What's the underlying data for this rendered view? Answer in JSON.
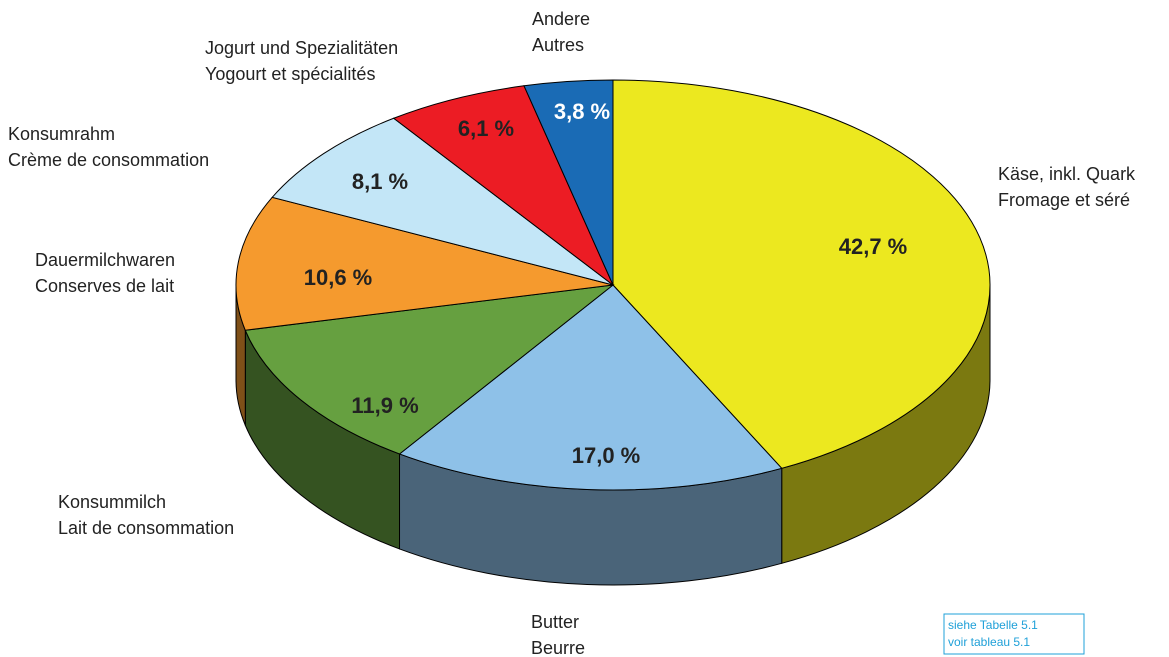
{
  "chart_data": {
    "type": "pie",
    "categories": [
      [
        "Käse, inkl. Quark",
        "Fromage et séré"
      ],
      [
        "Butter",
        "Beurre"
      ],
      [
        "Konsummilch",
        "Lait de consommation"
      ],
      [
        "Dauermilchwaren",
        "Conserves de lait"
      ],
      [
        "Konsumrahm",
        "Crème de consommation"
      ],
      [
        "Jogurt und Spezialitäten",
        "Yogourt et spécialités"
      ],
      [
        "Andere",
        "Autres"
      ]
    ],
    "values": [
      42.7,
      17.0,
      11.9,
      10.6,
      8.1,
      6.1,
      3.8
    ],
    "value_labels": [
      "42,7 %",
      "17,0 %",
      "11,9 %",
      "10,6 %",
      "8,1 %",
      "6,1 %",
      "3,8 %"
    ],
    "colors": [
      "#ece81f",
      "#8ec1e8",
      "#66a040",
      "#f59a2e",
      "#c3e6f7",
      "#ec1c24",
      "#1a6bb5"
    ],
    "value_label_colors": [
      "#222222",
      "#222222",
      "#222222",
      "#222222",
      "#222222",
      "#222222",
      "#ffffff"
    ],
    "note": [
      "siehe Tabelle 5.1",
      "voir tableau 5.1"
    ]
  }
}
